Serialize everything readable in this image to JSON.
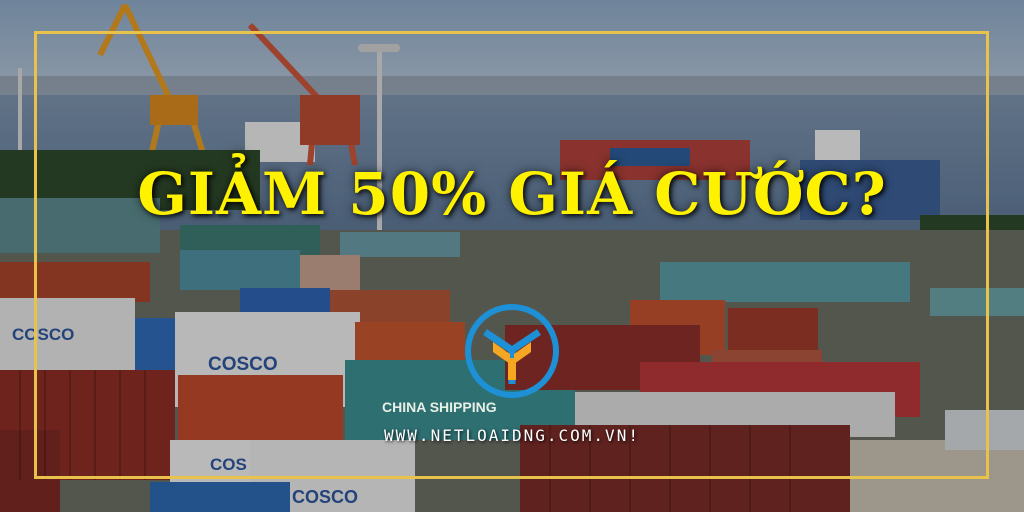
{
  "headline": "GIẢM 50% GIÁ CƯỚC?",
  "website": "WWW.NETLOAIDNG.COM.VN!",
  "container_labels": {
    "cosco": "COSCO",
    "cosco_short": "COS",
    "china_shipping": "CHINA SHIPPING"
  },
  "colors": {
    "headline": "#fff200",
    "frame": "#e8c24a",
    "website": "#ffffff",
    "logo_ring": "#1e90d6",
    "logo_mark": "#f5a623",
    "water": "#6f8fb0",
    "sky": "#9fb6cf"
  },
  "icons": {
    "logo": "company-logo-icon"
  }
}
